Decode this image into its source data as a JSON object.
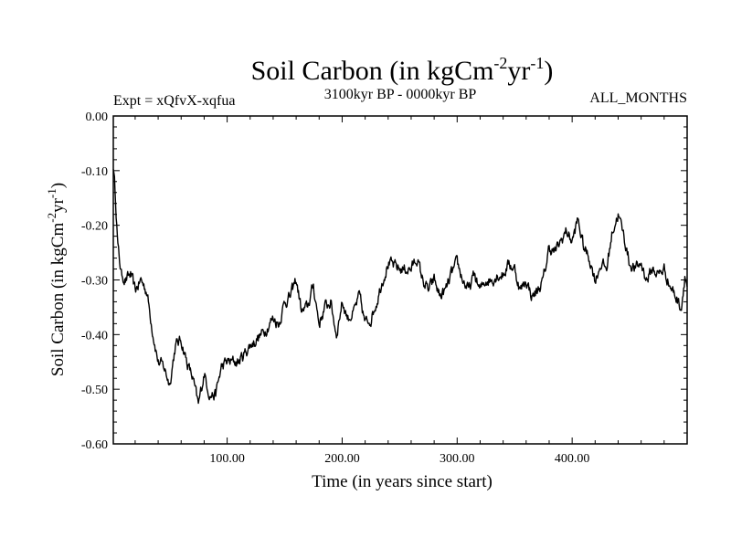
{
  "chart_data": {
    "type": "line",
    "title": "Soil Carbon (in kgCm",
    "title_sup1": "-2",
    "title_mid": "yr",
    "title_sup2": "-1",
    "title_end": ")",
    "left_subtitle": "Expt = xQfvX-xqfua",
    "center_subtitle": "3100kyr BP - 0000kyr BP",
    "right_subtitle": "ALL_MONTHS",
    "xlabel": "Time (in years since start)",
    "ylabel": "Soil Carbon (in kgCm",
    "ylabel_sup1": "-2",
    "ylabel_mid": "yr",
    "ylabel_sup2": "-1",
    "ylabel_end": ")",
    "xlim": [
      1,
      500
    ],
    "ylim": [
      -0.6,
      0.0
    ],
    "x_ticks": [
      100,
      200,
      300,
      400
    ],
    "x_tick_labels": [
      "100.00",
      "200.00",
      "300.00",
      "400.00"
    ],
    "y_ticks": [
      0.0,
      -0.1,
      -0.2,
      -0.3,
      -0.4,
      -0.5,
      -0.6
    ],
    "y_tick_labels": [
      "0.00",
      "-0.10",
      "-0.20",
      "-0.30",
      "-0.40",
      "-0.50",
      "-0.60"
    ],
    "series": [
      {
        "name": "Soil Carbon",
        "color": "#000000",
        "anchors": [
          [
            1,
            -0.09
          ],
          [
            3,
            -0.15
          ],
          [
            5,
            -0.24
          ],
          [
            8,
            -0.29
          ],
          [
            12,
            -0.3
          ],
          [
            16,
            -0.29
          ],
          [
            20,
            -0.32
          ],
          [
            25,
            -0.3
          ],
          [
            30,
            -0.32
          ],
          [
            35,
            -0.39
          ],
          [
            40,
            -0.45
          ],
          [
            45,
            -0.46
          ],
          [
            50,
            -0.49
          ],
          [
            55,
            -0.42
          ],
          [
            60,
            -0.41
          ],
          [
            65,
            -0.45
          ],
          [
            70,
            -0.48
          ],
          [
            75,
            -0.53
          ],
          [
            80,
            -0.47
          ],
          [
            85,
            -0.51
          ],
          [
            90,
            -0.51
          ],
          [
            95,
            -0.46
          ],
          [
            100,
            -0.45
          ],
          [
            110,
            -0.45
          ],
          [
            120,
            -0.42
          ],
          [
            130,
            -0.4
          ],
          [
            140,
            -0.37
          ],
          [
            145,
            -0.38
          ],
          [
            150,
            -0.34
          ],
          [
            155,
            -0.33
          ],
          [
            160,
            -0.3
          ],
          [
            165,
            -0.36
          ],
          [
            170,
            -0.35
          ],
          [
            175,
            -0.31
          ],
          [
            180,
            -0.38
          ],
          [
            185,
            -0.35
          ],
          [
            190,
            -0.34
          ],
          [
            195,
            -0.4
          ],
          [
            200,
            -0.34
          ],
          [
            205,
            -0.37
          ],
          [
            210,
            -0.36
          ],
          [
            215,
            -0.33
          ],
          [
            220,
            -0.38
          ],
          [
            225,
            -0.37
          ],
          [
            230,
            -0.34
          ],
          [
            235,
            -0.3
          ],
          [
            240,
            -0.27
          ],
          [
            250,
            -0.28
          ],
          [
            260,
            -0.28
          ],
          [
            265,
            -0.26
          ],
          [
            270,
            -0.3
          ],
          [
            275,
            -0.32
          ],
          [
            280,
            -0.3
          ],
          [
            285,
            -0.33
          ],
          [
            290,
            -0.32
          ],
          [
            295,
            -0.29
          ],
          [
            300,
            -0.27
          ],
          [
            305,
            -0.3
          ],
          [
            310,
            -0.32
          ],
          [
            315,
            -0.29
          ],
          [
            320,
            -0.32
          ],
          [
            325,
            -0.3
          ],
          [
            330,
            -0.3
          ],
          [
            335,
            -0.29
          ],
          [
            340,
            -0.29
          ],
          [
            345,
            -0.27
          ],
          [
            350,
            -0.28
          ],
          [
            355,
            -0.32
          ],
          [
            360,
            -0.3
          ],
          [
            365,
            -0.33
          ],
          [
            370,
            -0.32
          ],
          [
            375,
            -0.3
          ],
          [
            380,
            -0.24
          ],
          [
            385,
            -0.25
          ],
          [
            390,
            -0.23
          ],
          [
            395,
            -0.21
          ],
          [
            400,
            -0.23
          ],
          [
            405,
            -0.19
          ],
          [
            410,
            -0.24
          ],
          [
            415,
            -0.26
          ],
          [
            420,
            -0.3
          ],
          [
            425,
            -0.27
          ],
          [
            430,
            -0.28
          ],
          [
            435,
            -0.21
          ],
          [
            440,
            -0.18
          ],
          [
            445,
            -0.22
          ],
          [
            450,
            -0.27
          ],
          [
            455,
            -0.28
          ],
          [
            460,
            -0.27
          ],
          [
            465,
            -0.3
          ],
          [
            470,
            -0.28
          ],
          [
            475,
            -0.29
          ],
          [
            480,
            -0.28
          ],
          [
            485,
            -0.31
          ],
          [
            490,
            -0.33
          ],
          [
            495,
            -0.35
          ],
          [
            498,
            -0.29
          ],
          [
            500,
            -0.31
          ]
        ]
      }
    ]
  }
}
